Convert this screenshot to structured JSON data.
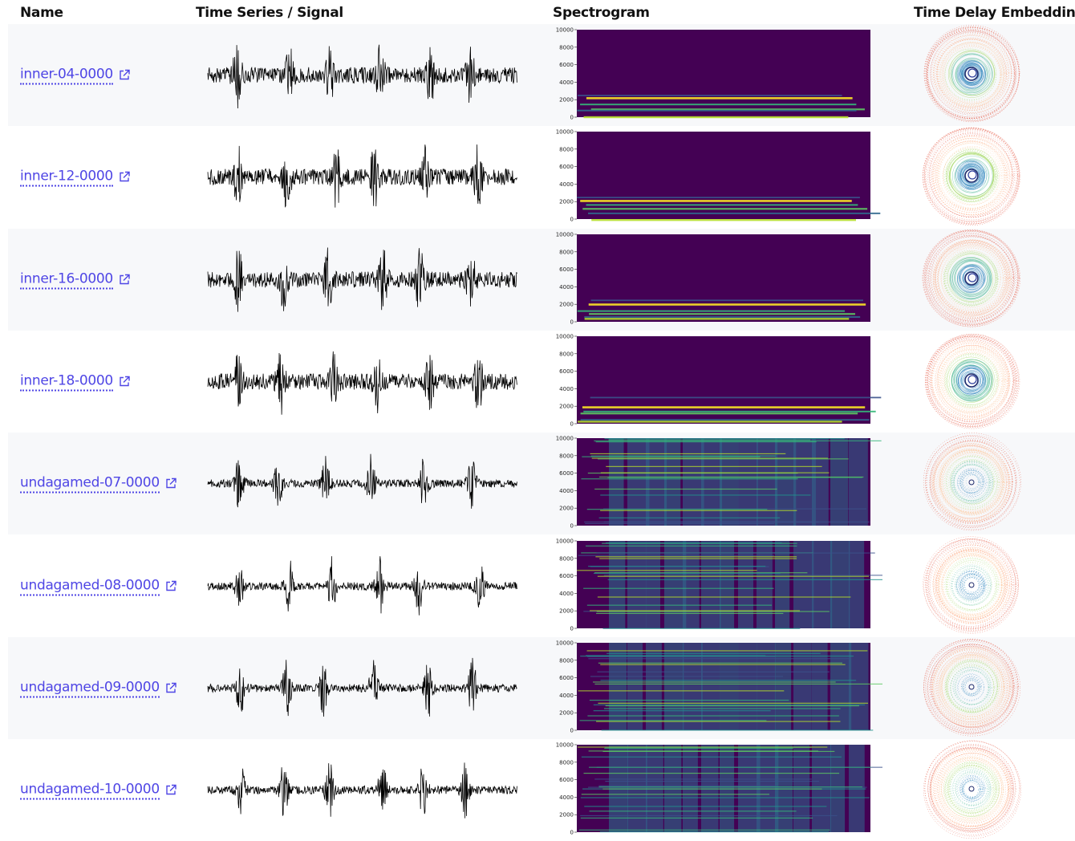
{
  "columns": {
    "name": "Name",
    "signal": "Time Series / Signal",
    "spectrogram": "Spectrogram",
    "embedding": "Time Delay Embedding"
  },
  "spectrogram_yticks": [
    "10000",
    "8000",
    "6000",
    "4000",
    "2000",
    "0"
  ],
  "colors": {
    "link": "#4f46e5",
    "row_alt": "#f7f8fa",
    "spec_bg": "#440154"
  },
  "rows": [
    {
      "name": "inner-04-0000",
      "kind": "inner",
      "link_icon": "external-link-icon"
    },
    {
      "name": "inner-12-0000",
      "kind": "inner",
      "link_icon": "external-link-icon"
    },
    {
      "name": "inner-16-0000",
      "kind": "inner",
      "link_icon": "external-link-icon"
    },
    {
      "name": "inner-18-0000",
      "kind": "inner",
      "link_icon": "external-link-icon"
    },
    {
      "name": "undagamed-07-0000",
      "kind": "undagamed",
      "link_icon": "external-link-icon"
    },
    {
      "name": "undagamed-08-0000",
      "kind": "undagamed",
      "link_icon": "external-link-icon"
    },
    {
      "name": "undagamed-09-0000",
      "kind": "undagamed",
      "link_icon": "external-link-icon"
    },
    {
      "name": "undagamed-10-0000",
      "kind": "undagamed",
      "link_icon": "external-link-icon"
    }
  ]
}
